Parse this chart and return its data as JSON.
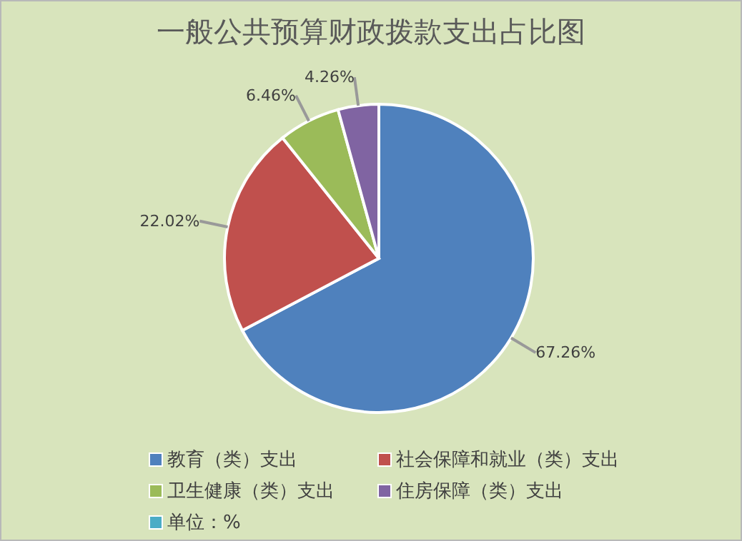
{
  "chart_data": {
    "type": "pie",
    "title": "一般公共预算财政拨款支出占比图",
    "categories": [
      "教育（类）支出",
      "社会保障和就业（类）支出",
      "卫生健康（类）支出",
      "住房保障（类）支出"
    ],
    "values": [
      67.26,
      22.02,
      6.46,
      4.26
    ],
    "colors": [
      "#4f81bd",
      "#c0504d",
      "#9bbb59",
      "#8064a2"
    ],
    "value_labels": [
      "67.26%",
      "22.02%",
      "6.46%",
      "4.26%"
    ],
    "legend": "bottom",
    "annotations": [
      "单位：%"
    ]
  }
}
